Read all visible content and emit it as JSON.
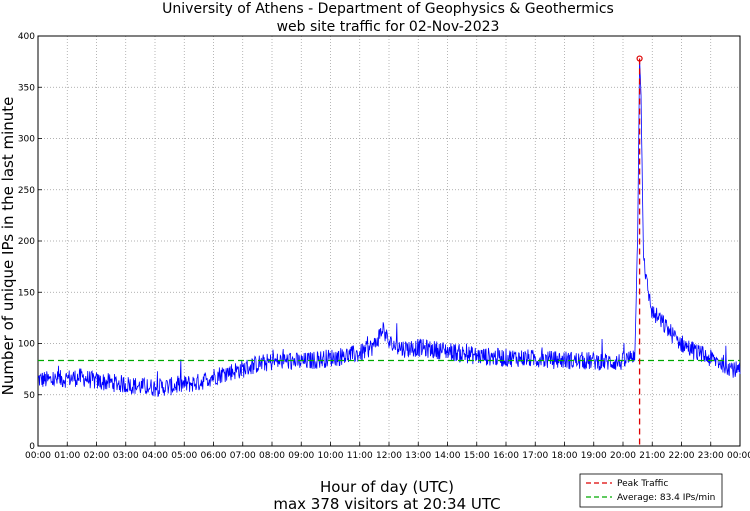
{
  "chart_data": {
    "type": "line",
    "title": "University of Athens - Department of Geophysics & Geothermics",
    "subtitle": "web site traffic for 02-Nov-2023",
    "xlabel": "Hour of day (UTC)",
    "caption": "max 378 visitors at 20:34 UTC",
    "ylabel": "Number of unique IPs in the last minute",
    "xlim": [
      0,
      24
    ],
    "ylim": [
      0,
      400
    ],
    "grid": true,
    "x_tick_labels": [
      "00:00",
      "01:00",
      "02:00",
      "03:00",
      "04:00",
      "05:00",
      "06:00",
      "07:00",
      "08:00",
      "09:00",
      "10:00",
      "11:00",
      "12:00",
      "13:00",
      "14:00",
      "15:00",
      "16:00",
      "17:00",
      "18:00",
      "19:00",
      "20:00",
      "21:00",
      "22:00",
      "23:00",
      "00:00"
    ],
    "y_ticks": [
      0,
      50,
      100,
      150,
      200,
      250,
      300,
      350,
      400
    ],
    "series": [
      {
        "name": "Traffic",
        "color": "#0000ff",
        "x_hours": [
          0,
          0.5,
          1,
          1.5,
          2,
          2.5,
          3,
          3.5,
          4,
          4.5,
          5,
          5.5,
          6,
          6.5,
          7,
          7.5,
          8,
          8.5,
          9,
          9.5,
          10,
          10.5,
          11,
          11.5,
          11.8,
          12,
          12.5,
          13,
          13.5,
          14,
          14.5,
          15,
          15.5,
          16,
          16.5,
          17,
          17.5,
          18,
          18.5,
          19,
          19.5,
          20,
          20.2,
          20.4,
          20.5,
          20.567,
          20.62,
          20.7,
          20.8,
          21,
          21.2,
          21.5,
          21.8,
          22,
          22.3,
          22.6,
          23,
          23.3,
          23.6,
          24
        ],
        "values": [
          65,
          64,
          66,
          67,
          63,
          62,
          60,
          58,
          57,
          58,
          60,
          62,
          68,
          72,
          75,
          80,
          82,
          83,
          82,
          84,
          86,
          88,
          90,
          98,
          115,
          100,
          95,
          96,
          94,
          93,
          90,
          88,
          87,
          86,
          86,
          85,
          84,
          84,
          83,
          83,
          82,
          82,
          85,
          90,
          200,
          378,
          340,
          190,
          160,
          130,
          125,
          115,
          105,
          100,
          95,
          90,
          85,
          82,
          78,
          72
        ],
        "noise_amplitude": 9
      }
    ],
    "peak": {
      "x_hours": 20.567,
      "value": 378,
      "label": "Peak Traffic",
      "color": "#dd0000"
    },
    "average": {
      "value": 83.4,
      "label": "Average: 83.4 IPs/min",
      "color": "#00aa00"
    },
    "legend_position": "bottom-right"
  }
}
